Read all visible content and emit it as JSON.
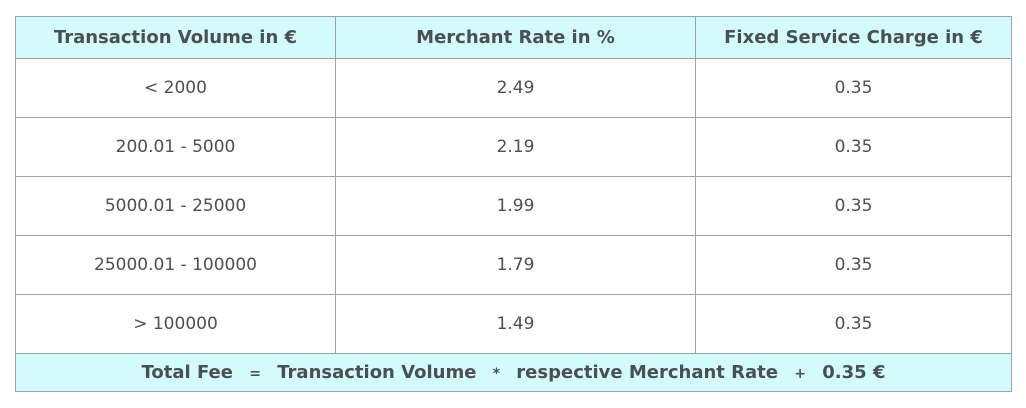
{
  "table": {
    "headers": [
      "Transaction Volume in €",
      "Merchant Rate in %",
      "Fixed Service Charge in €"
    ],
    "rows": [
      [
        "< 2000",
        "2.49",
        "0.35"
      ],
      [
        "200.01 - 5000",
        "2.19",
        "0.35"
      ],
      [
        "5000.01 - 25000",
        "1.99",
        "0.35"
      ],
      [
        "25000.01 - 100000",
        "1.79",
        "0.35"
      ],
      [
        "> 100000",
        "1.49",
        "0.35"
      ]
    ],
    "footer": {
      "part1": "Total Fee",
      "op1": "=",
      "part2": "Transaction Volume",
      "op2": "*",
      "part3": "respective Merchant Rate",
      "op3": "+",
      "part4": "0.35 €"
    }
  },
  "colors": {
    "header_background": "#d4fbfb",
    "border": "#9aa3a6",
    "text": "#4a4f52"
  }
}
